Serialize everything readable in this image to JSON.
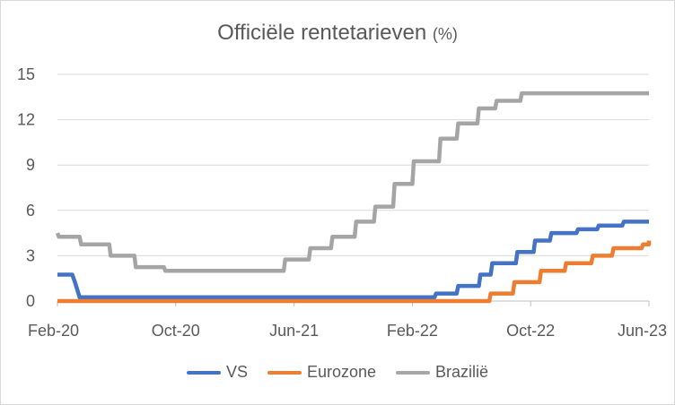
{
  "chart_data": {
    "type": "line",
    "title": "Officiële rentetarieven",
    "title_unit": "(%)",
    "xlabel": "",
    "ylabel": "",
    "x_tick_labels": [
      "Feb-20",
      "Oct-20",
      "Jun-21",
      "Feb-22",
      "Oct-22",
      "Jun-23"
    ],
    "x_tick_month_index": [
      0,
      8,
      16,
      24,
      32,
      40
    ],
    "y_ticks": [
      0,
      3,
      6,
      9,
      12,
      15
    ],
    "ylim": [
      0,
      15
    ],
    "xlim_month_index": [
      0,
      40
    ],
    "grid": true,
    "legend_position": "bottom",
    "series": [
      {
        "name": "VS",
        "color": "#4472C4",
        "steps": [
          [
            0,
            1.75
          ],
          [
            1,
            1.75
          ],
          [
            1.2,
            1.2
          ],
          [
            1.5,
            0.25
          ],
          [
            25.5,
            0.25
          ],
          [
            25.6,
            0.5
          ],
          [
            27,
            0.5
          ],
          [
            27.1,
            1.0
          ],
          [
            28.5,
            1.0
          ],
          [
            28.6,
            1.75
          ],
          [
            29.3,
            1.75
          ],
          [
            29.4,
            2.5
          ],
          [
            31,
            2.5
          ],
          [
            31.1,
            3.25
          ],
          [
            32.2,
            3.25
          ],
          [
            32.3,
            4.0
          ],
          [
            33.3,
            4.0
          ],
          [
            33.4,
            4.5
          ],
          [
            35.1,
            4.5
          ],
          [
            35.2,
            4.75
          ],
          [
            36.5,
            4.75
          ],
          [
            36.6,
            5.0
          ],
          [
            38.2,
            5.0
          ],
          [
            38.3,
            5.25
          ],
          [
            40,
            5.25
          ]
        ]
      },
      {
        "name": "Eurozone",
        "color": "#ED7D31",
        "steps": [
          [
            0,
            0
          ],
          [
            29.2,
            0
          ],
          [
            29.3,
            0.5
          ],
          [
            30.8,
            0.5
          ],
          [
            30.9,
            1.25
          ],
          [
            32.6,
            1.25
          ],
          [
            32.7,
            2.0
          ],
          [
            34.3,
            2.0
          ],
          [
            34.4,
            2.5
          ],
          [
            36.1,
            2.5
          ],
          [
            36.2,
            3.0
          ],
          [
            37.5,
            3.0
          ],
          [
            37.6,
            3.5
          ],
          [
            39.5,
            3.5
          ],
          [
            39.6,
            3.75
          ],
          [
            40,
            3.75
          ],
          [
            40,
            4.0
          ]
        ]
      },
      {
        "name": "Brazilië",
        "color": "#A5A5A5",
        "steps": [
          [
            0,
            4.5
          ],
          [
            0.1,
            4.25
          ],
          [
            1.5,
            4.25
          ],
          [
            1.6,
            3.75
          ],
          [
            3.5,
            3.75
          ],
          [
            3.6,
            3.0
          ],
          [
            5.2,
            3.0
          ],
          [
            5.3,
            2.25
          ],
          [
            7.2,
            2.25
          ],
          [
            7.3,
            2.0
          ],
          [
            15.3,
            2.0
          ],
          [
            15.4,
            2.75
          ],
          [
            17.0,
            2.75
          ],
          [
            17.1,
            3.5
          ],
          [
            18.5,
            3.5
          ],
          [
            18.6,
            4.25
          ],
          [
            20.1,
            4.25
          ],
          [
            20.2,
            5.25
          ],
          [
            21.4,
            5.25
          ],
          [
            21.5,
            6.25
          ],
          [
            22.7,
            6.25
          ],
          [
            22.8,
            7.75
          ],
          [
            24.0,
            7.75
          ],
          [
            24.1,
            9.25
          ],
          [
            25.8,
            9.25
          ],
          [
            25.9,
            10.75
          ],
          [
            27.0,
            10.75
          ],
          [
            27.1,
            11.75
          ],
          [
            28.4,
            11.75
          ],
          [
            28.5,
            12.75
          ],
          [
            29.6,
            12.75
          ],
          [
            29.7,
            13.25
          ],
          [
            31.3,
            13.25
          ],
          [
            31.4,
            13.75
          ],
          [
            40,
            13.75
          ]
        ]
      }
    ]
  }
}
